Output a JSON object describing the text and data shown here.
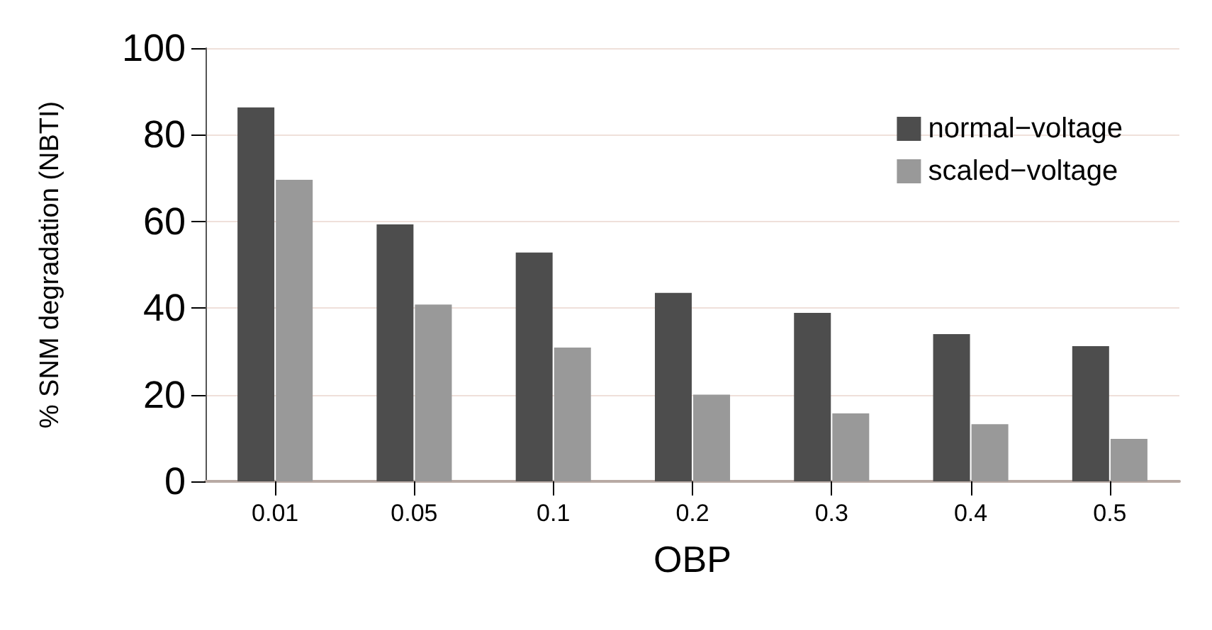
{
  "chart_data": {
    "type": "bar",
    "xlabel": "OBP",
    "ylabel": "% SNM degradation (NBTI)",
    "categories": [
      "0.01",
      "0.05",
      "0.1",
      "0.2",
      "0.3",
      "0.4",
      "0.5"
    ],
    "series": [
      {
        "name": "normal−voltage",
        "color": "#4d4d4d",
        "values": [
          86.3,
          59.3,
          52.8,
          43.5,
          38.9,
          34.0,
          31.2
        ]
      },
      {
        "name": "scaled−voltage",
        "color": "#999999",
        "values": [
          69.6,
          40.8,
          30.9,
          20.0,
          15.7,
          13.2,
          9.8
        ]
      }
    ],
    "ylim": [
      0,
      100
    ],
    "yticks": [
      0,
      20,
      40,
      60,
      80,
      100
    ],
    "grid": "y",
    "legend": "top right"
  }
}
